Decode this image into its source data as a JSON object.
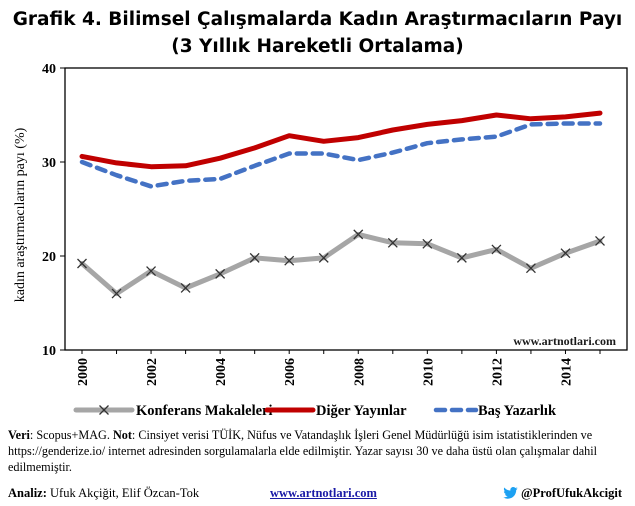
{
  "title": {
    "line1": "Grafik 4. Bilimsel Çalışmalarda Kadın Araştırmacıların Payı",
    "line2": "(3 Yıllık Hareketli Ortalama)"
  },
  "chart_data": {
    "type": "line",
    "ylabel": "kadın araştırmacıların payı (%)",
    "xlabel": "",
    "ylim": [
      10,
      40
    ],
    "yticks": [
      10,
      20,
      30,
      40
    ],
    "xlim": [
      2000,
      2015
    ],
    "xticks": [
      2000,
      2002,
      2004,
      2006,
      2008,
      2010,
      2012,
      2014
    ],
    "x": [
      2000,
      2001,
      2002,
      2003,
      2004,
      2005,
      2006,
      2007,
      2008,
      2009,
      2010,
      2011,
      2012,
      2013,
      2014,
      2015
    ],
    "series": [
      {
        "name": "Konferans Makaleleri",
        "color": "#a6a6a6",
        "style": "solid-x-markers",
        "values": [
          19.2,
          16.0,
          18.4,
          16.6,
          18.1,
          19.8,
          19.5,
          19.8,
          22.3,
          21.4,
          21.3,
          19.8,
          20.7,
          18.7,
          20.3,
          21.6
        ]
      },
      {
        "name": "Diğer Yayınlar",
        "color": "#c00000",
        "style": "solid",
        "values": [
          30.6,
          29.9,
          29.5,
          29.6,
          30.4,
          31.5,
          32.8,
          32.2,
          32.6,
          33.4,
          34.0,
          34.4,
          35.0,
          34.6,
          34.8,
          35.2
        ]
      },
      {
        "name": "Baş Yazarlık",
        "color": "#4472c4",
        "style": "dashed",
        "values": [
          30.0,
          28.6,
          27.4,
          28.0,
          28.2,
          29.6,
          30.9,
          30.9,
          30.2,
          31.0,
          32.0,
          32.4,
          32.7,
          34.0,
          34.1,
          34.1
        ]
      }
    ],
    "watermark": "www.artnotlari.com"
  },
  "note": {
    "veri_label": "Veri",
    "veri_text": ": Scopus+MAG. ",
    "not_label": "Not",
    "not_text": ": Cinsiyet verisi TÜİK, Nüfus ve Vatandaşlık İşleri Genel Müdürlüğü isim istatistiklerinden ve https://genderize.io/ internet adresinden sorgulamalarla elde edilmiştir. Yazar sayısı 30 ve daha üstü olan çalışmalar dahil edilmemiştir."
  },
  "footer": {
    "analiz_label": "Analiz:",
    "analiz_text": " Ufuk Akçiğit, Elif Özcan-Tok",
    "site": "www.artnotlari.com",
    "twitter": "@ProfUfukAkcigit",
    "twitter_color": "#1da1f2"
  }
}
